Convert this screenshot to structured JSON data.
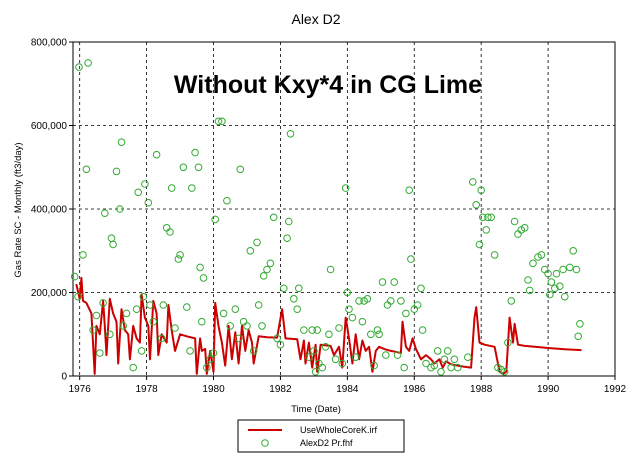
{
  "chart_data": {
    "type": "line",
    "title": "Alex D2",
    "annotation": "Without Kxy*4 in CG Lime",
    "xlabel": "Time (Date)",
    "ylabel": "Gas Rate SC - Monthly (ft3/day)",
    "xlim": [
      1975.8,
      1992
    ],
    "ylim": [
      0,
      800000
    ],
    "x_ticks": [
      1976,
      1978,
      1980,
      1982,
      1984,
      1986,
      1988,
      1990,
      1992
    ],
    "y_ticks": [
      0,
      200000,
      400000,
      600000,
      800000
    ],
    "x_tick_labels": [
      "1976",
      "1978",
      "1980",
      "1982",
      "1984",
      "1986",
      "1988",
      "1990",
      "1992"
    ],
    "y_tick_labels": [
      "0",
      "200,000",
      "400,000",
      "600,000",
      "800,000"
    ],
    "grid": true,
    "legend_position": "bottom-center",
    "series": [
      {
        "name": "UseWholeCoreK.irf",
        "style": "line",
        "color": "#cc0000",
        "points": [
          [
            1975.9,
            220000
          ],
          [
            1976.0,
            185000
          ],
          [
            1976.05,
            235000
          ],
          [
            1976.1,
            180000
          ],
          [
            1976.2,
            175000
          ],
          [
            1976.35,
            150000
          ],
          [
            1976.45,
            5000
          ],
          [
            1976.5,
            120000
          ],
          [
            1976.6,
            100000
          ],
          [
            1976.7,
            180000
          ],
          [
            1976.75,
            120000
          ],
          [
            1976.8,
            50000
          ],
          [
            1976.9,
            185000
          ],
          [
            1977.0,
            150000
          ],
          [
            1977.1,
            130000
          ],
          [
            1977.15,
            30000
          ],
          [
            1977.25,
            160000
          ],
          [
            1977.35,
            110000
          ],
          [
            1977.45,
            100000
          ],
          [
            1977.5,
            40000
          ],
          [
            1977.6,
            120000
          ],
          [
            1977.7,
            90000
          ],
          [
            1977.8,
            80000
          ],
          [
            1977.85,
            195000
          ],
          [
            1977.95,
            140000
          ],
          [
            1978.05,
            120000
          ],
          [
            1978.1,
            40000
          ],
          [
            1978.2,
            180000
          ],
          [
            1978.3,
            150000
          ],
          [
            1978.35,
            50000
          ],
          [
            1978.45,
            100000
          ],
          [
            1978.6,
            80000
          ],
          [
            1978.65,
            170000
          ],
          [
            1978.75,
            110000
          ],
          [
            1978.85,
            60000
          ],
          [
            1979.0,
            100000
          ],
          [
            1979.2,
            95000
          ],
          [
            1979.45,
            90000
          ],
          [
            1979.5,
            5000
          ],
          [
            1979.6,
            90000
          ],
          [
            1979.65,
            60000
          ],
          [
            1979.75,
            65000
          ],
          [
            1979.8,
            5000
          ],
          [
            1979.9,
            60000
          ],
          [
            1980.0,
            10000
          ],
          [
            1980.05,
            175000
          ],
          [
            1980.15,
            120000
          ],
          [
            1980.25,
            80000
          ],
          [
            1980.35,
            25000
          ],
          [
            1980.45,
            120000
          ],
          [
            1980.55,
            40000
          ],
          [
            1980.65,
            105000
          ],
          [
            1980.75,
            30000
          ],
          [
            1980.85,
            120000
          ],
          [
            1980.95,
            60000
          ],
          [
            1981.05,
            110000
          ],
          [
            1981.15,
            80000
          ],
          [
            1981.2,
            30000
          ],
          [
            1981.35,
            95000
          ],
          [
            1981.6,
            93000
          ],
          [
            1981.9,
            92000
          ],
          [
            1982.05,
            160000
          ],
          [
            1982.15,
            90000
          ],
          [
            1982.5,
            88000
          ],
          [
            1982.6,
            40000
          ],
          [
            1982.7,
            85000
          ],
          [
            1982.75,
            30000
          ],
          [
            1982.85,
            80000
          ],
          [
            1982.95,
            20000
          ],
          [
            1983.05,
            75000
          ],
          [
            1983.1,
            10000
          ],
          [
            1983.2,
            75000
          ],
          [
            1983.5,
            72000
          ],
          [
            1983.6,
            50000
          ],
          [
            1983.75,
            70000
          ],
          [
            1983.85,
            20000
          ],
          [
            1983.95,
            140000
          ],
          [
            1984.05,
            90000
          ],
          [
            1984.15,
            30000
          ],
          [
            1984.25,
            100000
          ],
          [
            1984.35,
            40000
          ],
          [
            1984.45,
            85000
          ],
          [
            1984.55,
            60000
          ],
          [
            1984.65,
            70000
          ],
          [
            1984.75,
            10000
          ],
          [
            1984.85,
            60000
          ],
          [
            1984.95,
            70000
          ],
          [
            1985.1,
            65000
          ],
          [
            1985.3,
            60000
          ],
          [
            1985.45,
            58000
          ],
          [
            1985.6,
            55000
          ],
          [
            1985.65,
            130000
          ],
          [
            1985.75,
            70000
          ],
          [
            1985.85,
            60000
          ],
          [
            1985.95,
            90000
          ],
          [
            1986.05,
            65000
          ],
          [
            1986.2,
            40000
          ],
          [
            1986.35,
            50000
          ],
          [
            1986.5,
            40000
          ],
          [
            1986.6,
            30000
          ],
          [
            1986.75,
            40000
          ],
          [
            1986.85,
            20000
          ],
          [
            1986.95,
            35000
          ],
          [
            1987.1,
            28000
          ],
          [
            1987.3,
            25000
          ],
          [
            1987.5,
            22000
          ],
          [
            1987.7,
            20000
          ],
          [
            1987.8,
            140000
          ],
          [
            1987.85,
            165000
          ],
          [
            1987.95,
            80000
          ],
          [
            1988.1,
            75000
          ],
          [
            1988.4,
            70000
          ],
          [
            1988.55,
            10000
          ],
          [
            1988.65,
            5000
          ],
          [
            1988.75,
            10000
          ],
          [
            1988.85,
            140000
          ],
          [
            1988.95,
            80000
          ],
          [
            1989.0,
            125000
          ],
          [
            1989.1,
            75000
          ],
          [
            1989.3,
            72000
          ],
          [
            1989.6,
            70000
          ],
          [
            1990.0,
            67000
          ],
          [
            1990.5,
            64000
          ],
          [
            1991.0,
            62000
          ]
        ]
      },
      {
        "name": "AlexD2 Pr.fhf",
        "style": "markers",
        "color": "#33aa33",
        "points": [
          [
            1975.85,
            238000
          ],
          [
            1975.95,
            190000
          ],
          [
            1975.98,
            740000
          ],
          [
            1976.1,
            290000
          ],
          [
            1976.2,
            495000
          ],
          [
            1976.25,
            750000
          ],
          [
            1976.4,
            110000
          ],
          [
            1976.5,
            145000
          ],
          [
            1976.6,
            55000
          ],
          [
            1976.7,
            175000
          ],
          [
            1976.75,
            390000
          ],
          [
            1976.9,
            100000
          ],
          [
            1976.95,
            330000
          ],
          [
            1977.0,
            315000
          ],
          [
            1977.1,
            490000
          ],
          [
            1977.2,
            400000
          ],
          [
            1977.25,
            560000
          ],
          [
            1977.3,
            120000
          ],
          [
            1977.4,
            150000
          ],
          [
            1977.6,
            20000
          ],
          [
            1977.7,
            160000
          ],
          [
            1977.75,
            440000
          ],
          [
            1977.85,
            60000
          ],
          [
            1977.9,
            190000
          ],
          [
            1977.95,
            460000
          ],
          [
            1978.05,
            415000
          ],
          [
            1978.1,
            170000
          ],
          [
            1978.2,
            130000
          ],
          [
            1978.3,
            530000
          ],
          [
            1978.45,
            90000
          ],
          [
            1978.5,
            170000
          ],
          [
            1978.6,
            355000
          ],
          [
            1978.7,
            345000
          ],
          [
            1978.75,
            450000
          ],
          [
            1978.85,
            115000
          ],
          [
            1978.95,
            280000
          ],
          [
            1979.0,
            290000
          ],
          [
            1979.1,
            500000
          ],
          [
            1979.2,
            165000
          ],
          [
            1979.3,
            60000
          ],
          [
            1979.35,
            450000
          ],
          [
            1979.45,
            535000
          ],
          [
            1979.55,
            500000
          ],
          [
            1979.6,
            260000
          ],
          [
            1979.65,
            130000
          ],
          [
            1979.7,
            235000
          ],
          [
            1979.8,
            20000
          ],
          [
            1979.9,
            40000
          ],
          [
            1980.0,
            55000
          ],
          [
            1980.05,
            375000
          ],
          [
            1980.15,
            610000
          ],
          [
            1980.25,
            610000
          ],
          [
            1980.3,
            150000
          ],
          [
            1980.4,
            420000
          ],
          [
            1980.5,
            120000
          ],
          [
            1980.65,
            160000
          ],
          [
            1980.75,
            90000
          ],
          [
            1980.8,
            495000
          ],
          [
            1980.9,
            130000
          ],
          [
            1981.0,
            120000
          ],
          [
            1981.1,
            300000
          ],
          [
            1981.2,
            60000
          ],
          [
            1981.3,
            320000
          ],
          [
            1981.35,
            170000
          ],
          [
            1981.45,
            120000
          ],
          [
            1981.5,
            240000
          ],
          [
            1981.6,
            255000
          ],
          [
            1981.7,
            270000
          ],
          [
            1981.8,
            380000
          ],
          [
            1981.9,
            90000
          ],
          [
            1982.0,
            75000
          ],
          [
            1982.1,
            210000
          ],
          [
            1982.2,
            330000
          ],
          [
            1982.25,
            370000
          ],
          [
            1982.3,
            580000
          ],
          [
            1982.4,
            185000
          ],
          [
            1982.5,
            160000
          ],
          [
            1982.55,
            210000
          ],
          [
            1982.7,
            110000
          ],
          [
            1982.85,
            45000
          ],
          [
            1982.95,
            110000
          ],
          [
            1983.0,
            60000
          ],
          [
            1983.05,
            10000
          ],
          [
            1983.1,
            110000
          ],
          [
            1983.15,
            30000
          ],
          [
            1983.25,
            20000
          ],
          [
            1983.35,
            70000
          ],
          [
            1983.45,
            100000
          ],
          [
            1983.5,
            255000
          ],
          [
            1983.65,
            40000
          ],
          [
            1983.75,
            115000
          ],
          [
            1983.85,
            30000
          ],
          [
            1983.95,
            450000
          ],
          [
            1984.0,
            200000
          ],
          [
            1984.05,
            160000
          ],
          [
            1984.15,
            140000
          ],
          [
            1984.25,
            45000
          ],
          [
            1984.35,
            180000
          ],
          [
            1984.45,
            130000
          ],
          [
            1984.5,
            180000
          ],
          [
            1984.6,
            185000
          ],
          [
            1984.7,
            100000
          ],
          [
            1984.8,
            25000
          ],
          [
            1984.9,
            110000
          ],
          [
            1984.95,
            100000
          ],
          [
            1985.05,
            225000
          ],
          [
            1985.15,
            50000
          ],
          [
            1985.2,
            170000
          ],
          [
            1985.3,
            180000
          ],
          [
            1985.4,
            225000
          ],
          [
            1985.5,
            50000
          ],
          [
            1985.6,
            180000
          ],
          [
            1985.7,
            20000
          ],
          [
            1985.75,
            150000
          ],
          [
            1985.85,
            445000
          ],
          [
            1985.9,
            280000
          ],
          [
            1986.0,
            160000
          ],
          [
            1986.1,
            170000
          ],
          [
            1986.2,
            210000
          ],
          [
            1986.25,
            110000
          ],
          [
            1986.35,
            30000
          ],
          [
            1986.5,
            20000
          ],
          [
            1986.6,
            25000
          ],
          [
            1986.7,
            60000
          ],
          [
            1986.8,
            10000
          ],
          [
            1986.9,
            40000
          ],
          [
            1987.0,
            60000
          ],
          [
            1987.1,
            20000
          ],
          [
            1987.2,
            40000
          ],
          [
            1987.3,
            20000
          ],
          [
            1987.6,
            45000
          ],
          [
            1987.75,
            465000
          ],
          [
            1987.85,
            410000
          ],
          [
            1987.95,
            315000
          ],
          [
            1988.0,
            445000
          ],
          [
            1988.05,
            380000
          ],
          [
            1988.15,
            350000
          ],
          [
            1988.2,
            380000
          ],
          [
            1988.3,
            380000
          ],
          [
            1988.4,
            290000
          ],
          [
            1988.5,
            20000
          ],
          [
            1988.6,
            15000
          ],
          [
            1988.7,
            10000
          ],
          [
            1988.8,
            80000
          ],
          [
            1988.9,
            180000
          ],
          [
            1989.0,
            370000
          ],
          [
            1989.1,
            340000
          ],
          [
            1989.2,
            350000
          ],
          [
            1989.3,
            355000
          ],
          [
            1989.4,
            230000
          ],
          [
            1989.45,
            205000
          ],
          [
            1989.55,
            270000
          ],
          [
            1989.7,
            285000
          ],
          [
            1989.8,
            290000
          ],
          [
            1989.9,
            255000
          ],
          [
            1990.0,
            245000
          ],
          [
            1990.05,
            195000
          ],
          [
            1990.1,
            225000
          ],
          [
            1990.2,
            210000
          ],
          [
            1990.25,
            245000
          ],
          [
            1990.35,
            215000
          ],
          [
            1990.45,
            255000
          ],
          [
            1990.5,
            190000
          ],
          [
            1990.65,
            260000
          ],
          [
            1990.75,
            300000
          ],
          [
            1990.85,
            255000
          ],
          [
            1990.9,
            95000
          ],
          [
            1990.95,
            125000
          ]
        ]
      }
    ]
  }
}
